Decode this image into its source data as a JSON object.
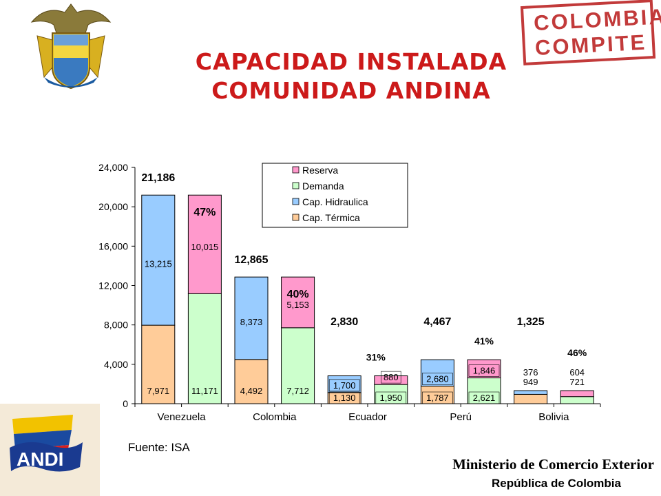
{
  "header": {
    "title_line1": "CAPACIDAD INSTALADA",
    "title_line2": "COMUNIDAD ANDINA",
    "stamp_line1": "COLOMBIA",
    "stamp_line2": "COMPITE",
    "emblem_icon": "coat-of-arms-icon"
  },
  "footer": {
    "source": "Fuente: ISA",
    "ministry": "Ministerio de Comercio Exterior",
    "republic": "República de Colombia",
    "logo_text": "ANDI"
  },
  "colors": {
    "reserva": "#ff99cc",
    "demanda": "#ccffcc",
    "hidraulica": "#99ccff",
    "termica": "#ffcc99",
    "title": "#cc1a1a"
  },
  "chart_data": {
    "type": "bar",
    "stacked": true,
    "ylim": [
      0,
      24000
    ],
    "yticks": [
      "0",
      "4,000",
      "8,000",
      "12,000",
      "16,000",
      "20,000",
      "24,000"
    ],
    "categories": [
      "Venezuela",
      "Colombia",
      "Ecuador",
      "Perú",
      "Bolivia"
    ],
    "legend": [
      "Reserva",
      "Demanda",
      "Cap. Hidraulica",
      "Cap. Térmica"
    ],
    "legend_position": "top-right",
    "capacity_bars": [
      {
        "country": "Venezuela",
        "termica": 7971,
        "hidraulica": 13215,
        "termica_label": "7,971",
        "hidraulica_label": "13,215",
        "total_label": "21,186"
      },
      {
        "country": "Colombia",
        "termica": 4492,
        "hidraulica": 8373,
        "termica_label": "4,492",
        "hidraulica_label": "8,373",
        "total_label": "12,865"
      },
      {
        "country": "Ecuador",
        "termica": 1130,
        "hidraulica": 1700,
        "termica_label": "1,130",
        "hidraulica_label": "1,700",
        "total_label": "2,830"
      },
      {
        "country": "Perú",
        "termica": 1787,
        "hidraulica": 2680,
        "termica_label": "1,787",
        "hidraulica_label": "2,680",
        "total_label": "4,467"
      },
      {
        "country": "Bolivia",
        "termica": 949,
        "hidraulica": 376,
        "termica_label": "949",
        "hidraulica_label": "376",
        "total_label": "1,325"
      }
    ],
    "demand_bars": [
      {
        "country": "Venezuela",
        "demanda": 11171,
        "reserva": 10015,
        "demanda_label": "11,171",
        "reserva_label": "10,015",
        "percent_label": "47%"
      },
      {
        "country": "Colombia",
        "demanda": 7712,
        "reserva": 5153,
        "demanda_label": "7,712",
        "reserva_label": "5,153",
        "percent_label": "40%"
      },
      {
        "country": "Ecuador",
        "demanda": 1950,
        "reserva": 880,
        "demanda_label": "1,950",
        "reserva_label": "880",
        "percent_label": "31%"
      },
      {
        "country": "Perú",
        "demanda": 2621,
        "reserva": 1846,
        "demanda_label": "2,621",
        "reserva_label": "1,846",
        "percent_label": "41%"
      },
      {
        "country": "Bolivia",
        "demanda": 721,
        "reserva": 604,
        "demanda_label": "721",
        "reserva_label": "604",
        "percent_label": "46%"
      }
    ]
  }
}
